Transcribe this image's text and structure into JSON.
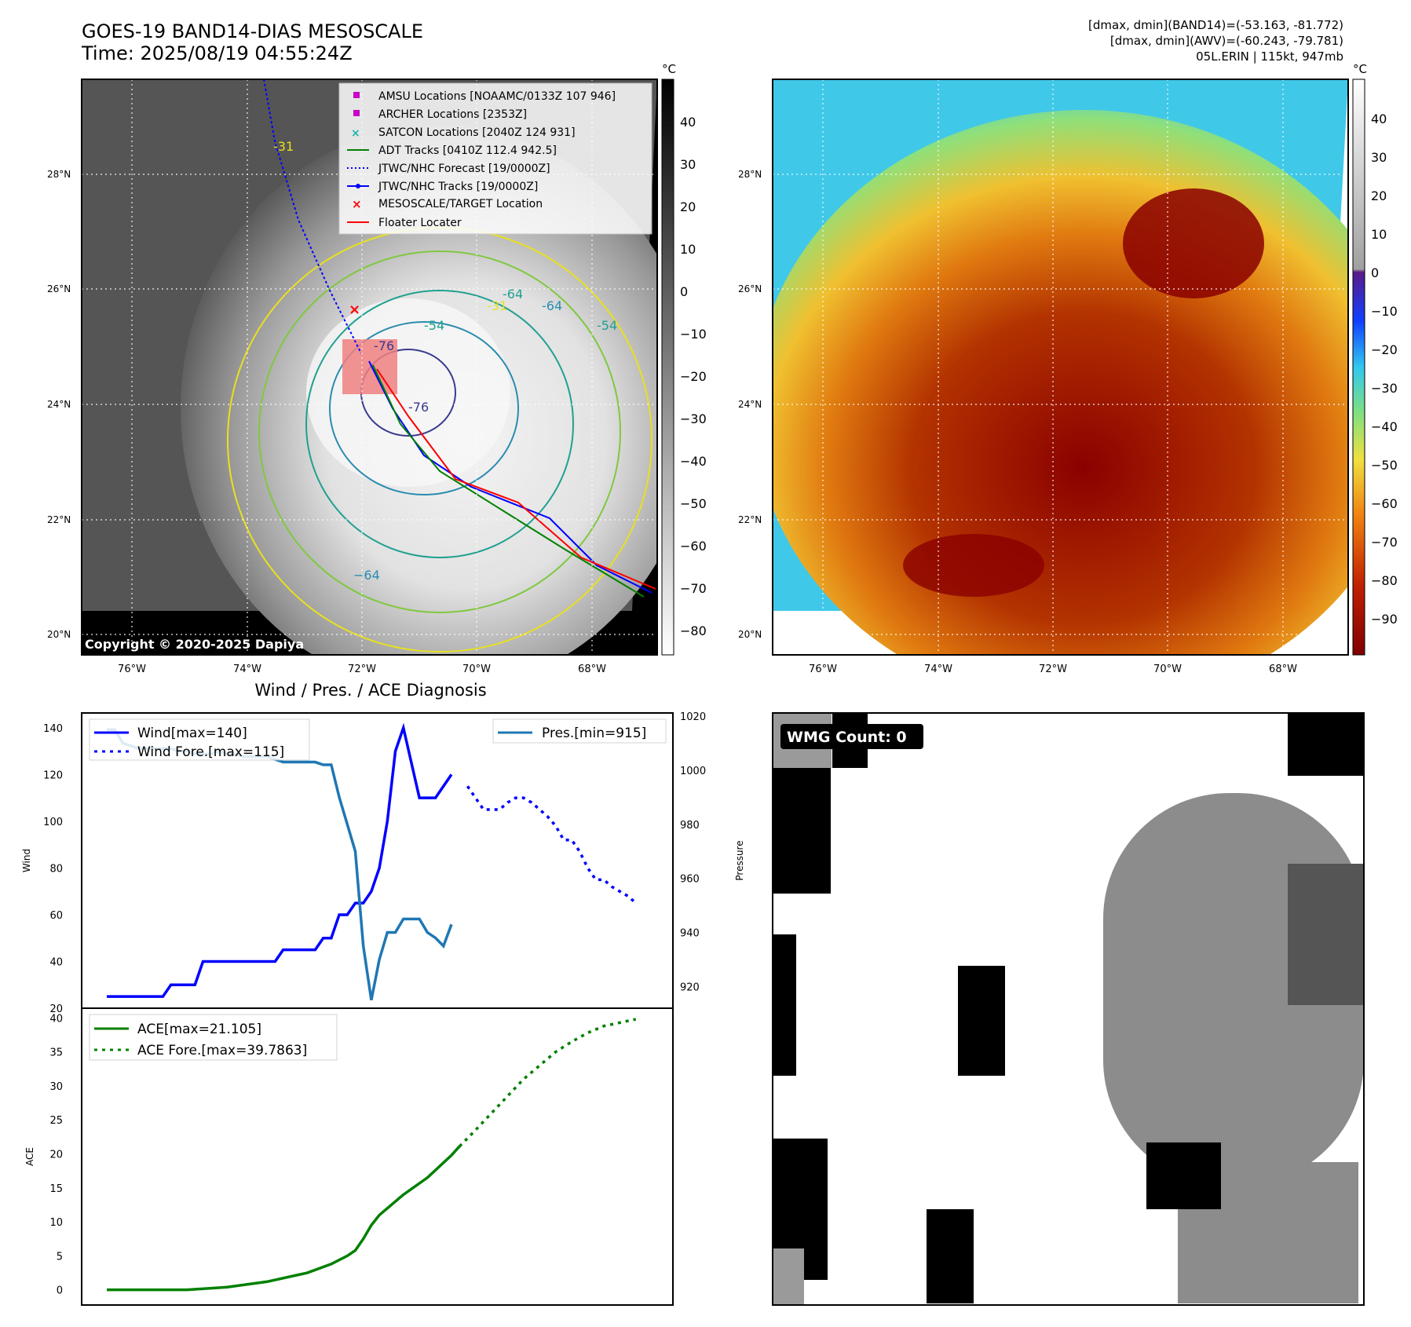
{
  "header": {
    "title_line1": "GOES-19 BAND14-DIAS MESOSCALE",
    "title_line2": "Time: 2025/08/19 04:55:24Z",
    "right_line1": "[dmax, dmin](BAND14)=(-53.163, -81.772)",
    "right_line2": "[dmax, dmin](AWV)=(-60.243, -79.781)",
    "right_line3": "05L.ERIN | 115kt, 947mb"
  },
  "map_axes": {
    "lat_labels": [
      "28°N",
      "26°N",
      "24°N",
      "22°N",
      "20°N"
    ],
    "lon_labels": [
      "76°W",
      "74°W",
      "72°W",
      "70°W",
      "68°W"
    ]
  },
  "colorbar_ir": {
    "unit": "°C",
    "ticks": [
      "40",
      "30",
      "20",
      "10",
      "0",
      "−10",
      "−20",
      "−30",
      "−40",
      "−50",
      "−60",
      "−70",
      "−80"
    ]
  },
  "colorbar_wv": {
    "unit": "°C",
    "ticks": [
      "40",
      "30",
      "20",
      "10",
      "0",
      "−10",
      "−20",
      "−30",
      "−40",
      "−50",
      "−60",
      "−70",
      "−80",
      "−90"
    ]
  },
  "contour_labels": [
    "-31",
    "-54",
    "-64",
    "-76",
    "-54",
    "-64",
    "-31",
    "-76",
    "−64"
  ],
  "copyright": "Copyright © 2020-2025 Dapiya",
  "legend_map": [
    {
      "label": "AMSU Locations [NOAAMC/0133Z 107 946]",
      "color": "#c800c8",
      "marker": "square"
    },
    {
      "label": "ARCHER Locations [2353Z]",
      "color": "#c800c8",
      "marker": "square"
    },
    {
      "label": "SATCON Locations [2040Z 124 931]",
      "color": "#20b2aa",
      "marker": "x"
    },
    {
      "label": "ADT Tracks [0410Z 112.4 942.5]",
      "color": "#008000",
      "marker": "line"
    },
    {
      "label": "JTWC/NHC Forecast [19/0000Z]",
      "color": "#0000ff",
      "marker": "dotted"
    },
    {
      "label": "JTWC/NHC Tracks [19/0000Z]",
      "color": "#0000ff",
      "marker": "dotline"
    },
    {
      "label": "MESOSCALE/TARGET Location",
      "color": "#ff0000",
      "marker": "x"
    },
    {
      "label": "Floater Locater",
      "color": "#ff0000",
      "marker": "line"
    }
  ],
  "wind_panel_title": "Wind / Pres. / ACE Diagnosis",
  "wmg": {
    "label": "WMG Count: 0"
  },
  "chart_data": [
    {
      "type": "line",
      "title": "Wind / Pres. / ACE Diagnosis",
      "xlabel": "",
      "ylabel": "Wind",
      "ylabel_right": "Pressure",
      "ylim": [
        20,
        145
      ],
      "ylim_right": [
        912,
        1020
      ],
      "yticks": [
        "140",
        "120",
        "100",
        "80",
        "60",
        "40",
        "20"
      ],
      "yticks_right": [
        "1020",
        "1000",
        "980",
        "960",
        "940",
        "920"
      ],
      "x": [
        0,
        1,
        2,
        3,
        4,
        5,
        6,
        7,
        8,
        9,
        10,
        11,
        12,
        13,
        14,
        15,
        16,
        17,
        18,
        19,
        20,
        21,
        22,
        23,
        24,
        25,
        26,
        27,
        28,
        29,
        30,
        31,
        32,
        33,
        34,
        35,
        36,
        37,
        38,
        39,
        40,
        41,
        42,
        43,
        44,
        45,
        46,
        47,
        48,
        49,
        50,
        51,
        52,
        53,
        54,
        55,
        56,
        57,
        58,
        59,
        60,
        61,
        62,
        63,
        64,
        65,
        66,
        67
      ],
      "series": [
        {
          "name": "Wind[max=140]",
          "style": "solid",
          "color": "#0000ff",
          "x": [
            0,
            1,
            2,
            3,
            4,
            5,
            6,
            7,
            8,
            9,
            10,
            11,
            12,
            13,
            14,
            15,
            16,
            17,
            18,
            19,
            20,
            21,
            22,
            23,
            24,
            25,
            26,
            27,
            28,
            29,
            30,
            31,
            32,
            33,
            34,
            35,
            36,
            37,
            38,
            39,
            40,
            41,
            42,
            43
          ],
          "values": [
            25,
            25,
            25,
            25,
            25,
            25,
            25,
            25,
            30,
            30,
            30,
            30,
            40,
            40,
            40,
            40,
            40,
            40,
            40,
            40,
            40,
            40,
            45,
            45,
            45,
            45,
            45,
            50,
            50,
            60,
            60,
            65,
            65,
            70,
            80,
            100,
            130,
            140,
            125,
            110,
            110,
            110,
            115,
            120
          ]
        },
        {
          "name": "Wind Fore.[max=115]",
          "style": "dotted",
          "color": "#0000ff",
          "x": [
            45,
            46,
            47,
            48,
            49,
            50,
            51,
            52,
            53,
            54,
            55,
            56,
            57,
            58,
            59,
            60,
            61,
            62,
            63,
            64,
            65,
            66
          ],
          "values": [
            115,
            110,
            105,
            105,
            105,
            108,
            110,
            110,
            108,
            105,
            102,
            98,
            92,
            92,
            87,
            80,
            75,
            75,
            72,
            70,
            68,
            65
          ]
        },
        {
          "name": "Pres.[min=915]",
          "style": "solid",
          "color": "#1f77b4",
          "axis": "right",
          "x": [
            0,
            1,
            2,
            3,
            4,
            5,
            6,
            7,
            8,
            9,
            10,
            11,
            12,
            13,
            14,
            15,
            16,
            17,
            18,
            19,
            20,
            21,
            22,
            23,
            24,
            25,
            26,
            27,
            28,
            29,
            30,
            31,
            32,
            33,
            34,
            35,
            36,
            37,
            38,
            39,
            40,
            41,
            42,
            43
          ],
          "values": [
            1015,
            1015,
            1010,
            1009,
            1008,
            1008,
            1008,
            1008,
            1008,
            1007,
            1007,
            1006,
            1006,
            1006,
            1007,
            1006,
            1006,
            1005,
            1005,
            1005,
            1005,
            1004,
            1003,
            1003,
            1003,
            1003,
            1003,
            1002,
            1002,
            990,
            980,
            970,
            935,
            915,
            930,
            940,
            940,
            945,
            945,
            945,
            940,
            938,
            935,
            943
          ]
        }
      ]
    },
    {
      "type": "line",
      "title": "",
      "xlabel": "",
      "ylabel": "ACE",
      "ylim": [
        -2,
        40.5
      ],
      "yticks": [
        "40",
        "35",
        "30",
        "25",
        "20",
        "15",
        "10",
        "5",
        "0"
      ],
      "series": [
        {
          "name": "ACE[max=21.105]",
          "style": "solid",
          "color": "#008000",
          "x": [
            0,
            5,
            10,
            15,
            20,
            25,
            28,
            30,
            31,
            32,
            33,
            34,
            35,
            37,
            40,
            43,
            44
          ],
          "values": [
            0,
            0,
            0,
            0.4,
            1.2,
            2.5,
            3.8,
            5,
            5.8,
            7.5,
            9.5,
            11,
            12,
            14,
            16.5,
            19.8,
            21.1
          ]
        },
        {
          "name": "ACE Fore.[max=39.7863]",
          "style": "dotted",
          "color": "#008000",
          "x": [
            44,
            46,
            48,
            50,
            52,
            54,
            56,
            58,
            60,
            62,
            64,
            66
          ],
          "values": [
            21.1,
            23.5,
            26,
            28.5,
            31,
            33,
            35,
            36.5,
            37.8,
            38.8,
            39.3,
            39.8
          ]
        }
      ]
    }
  ]
}
